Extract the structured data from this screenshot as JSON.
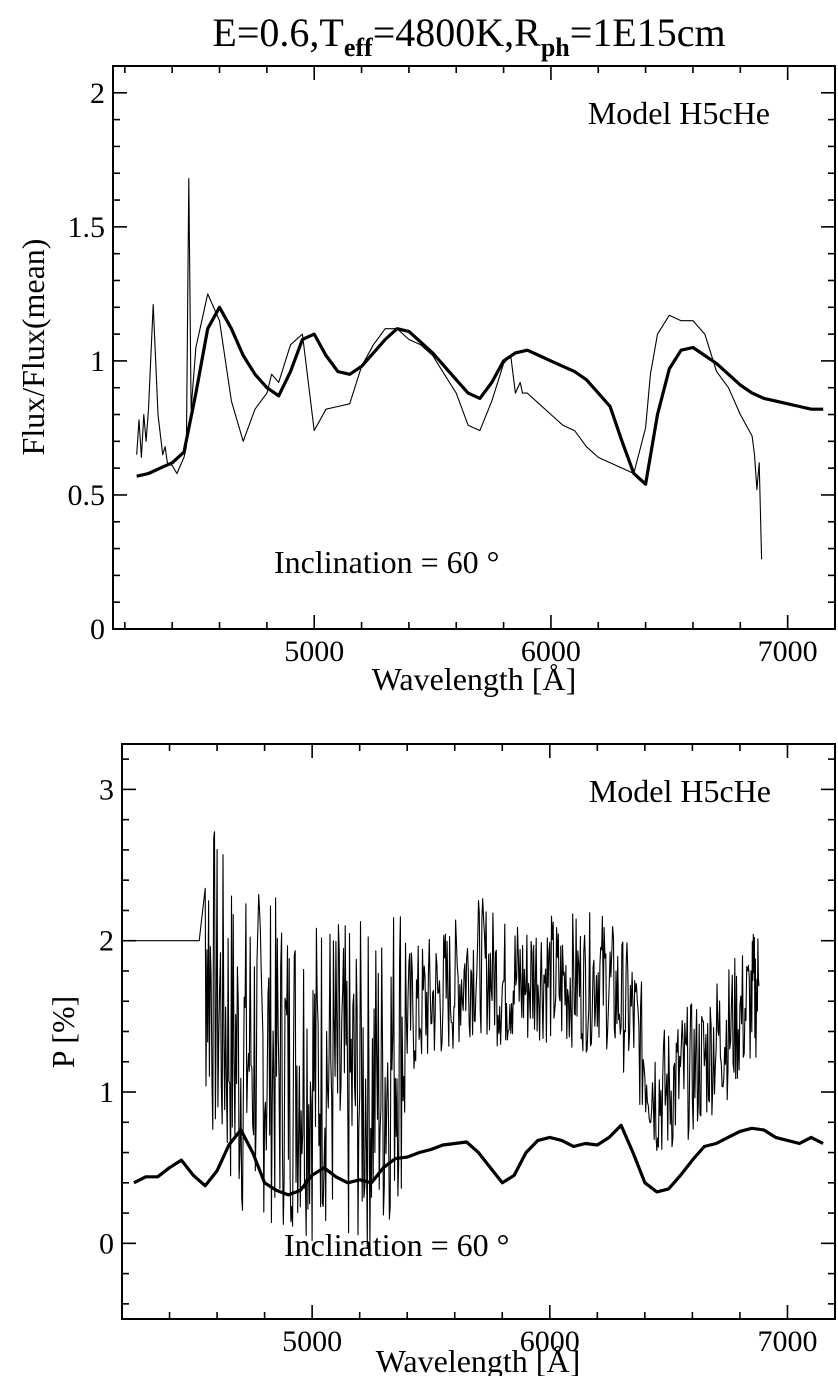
{
  "figure_title": "E=0.6,T_eff=4800K,R_ph=1E15cm",
  "title_parts": {
    "a": "E=0.6,T",
    "a_sub": "eff",
    "b": "=4800K,R",
    "b_sub": "ph",
    "c": "=1E15cm"
  },
  "chart_data": [
    {
      "type": "line",
      "title": "E=0.6,T_eff=4800K,R_ph=1E15cm",
      "annotation_top": "Model H5cHe",
      "annotation_bottom": "Inclination = 60 °",
      "xlabel": "Wavelength [Å]",
      "ylabel": "Flux/Flux(mean)",
      "xlim": [
        4150,
        7200
      ],
      "ylim": [
        0,
        2.1
      ],
      "xticks": [
        5000,
        6000,
        7000
      ],
      "xtick_labels": [
        "5000",
        "6000",
        "7000"
      ],
      "xminor": [
        4200,
        4400,
        4600,
        4800,
        5200,
        5400,
        5600,
        5800,
        6200,
        6400,
        6600,
        6800
      ],
      "yticks": [
        0,
        0.5,
        1,
        1.5,
        2
      ],
      "ytick_labels": [
        "0",
        "0.5",
        "1",
        "1.5",
        "2"
      ],
      "yminor": [
        0.1,
        0.2,
        0.3,
        0.4,
        0.6,
        0.7,
        0.8,
        0.9,
        1.1,
        1.2,
        1.3,
        1.4,
        1.6,
        1.7,
        1.8,
        1.9
      ],
      "grid": false,
      "series": [
        {
          "style": "thick",
          "x": [
            4250,
            4300,
            4350,
            4400,
            4450,
            4500,
            4550,
            4600,
            4650,
            4700,
            4750,
            4800,
            4850,
            4900,
            4950,
            5000,
            5050,
            5100,
            5150,
            5200,
            5250,
            5300,
            5350,
            5400,
            5450,
            5500,
            5550,
            5600,
            5650,
            5700,
            5750,
            5800,
            5850,
            5900,
            5950,
            6000,
            6050,
            6100,
            6150,
            6200,
            6250,
            6300,
            6350,
            6400,
            6450,
            6500,
            6550,
            6600,
            6650,
            6700,
            6750,
            6800,
            6850,
            6900,
            6950,
            7000,
            7050,
            7100,
            7150
          ],
          "y": [
            0.57,
            0.58,
            0.6,
            0.62,
            0.66,
            0.88,
            1.12,
            1.2,
            1.12,
            1.02,
            0.95,
            0.9,
            0.87,
            0.96,
            1.08,
            1.1,
            1.02,
            0.96,
            0.95,
            0.98,
            1.03,
            1.08,
            1.12,
            1.11,
            1.07,
            1.03,
            0.98,
            0.93,
            0.88,
            0.86,
            0.92,
            1.0,
            1.03,
            1.04,
            1.02,
            1.0,
            0.98,
            0.96,
            0.93,
            0.88,
            0.83,
            0.7,
            0.58,
            0.54,
            0.8,
            0.97,
            1.04,
            1.05,
            1.02,
            0.99,
            0.95,
            0.91,
            0.88,
            0.86,
            0.85,
            0.84,
            0.83,
            0.82,
            0.82
          ]
        },
        {
          "style": "thin",
          "x": [
            4250,
            4260,
            4270,
            4280,
            4290,
            4300,
            4320,
            4340,
            4360,
            4370,
            4380,
            4400,
            4420,
            4450,
            4460,
            4470,
            4480,
            4500,
            4550,
            4600,
            4650,
            4700,
            4750,
            4800,
            4820,
            4850,
            4900,
            4950,
            5000,
            5050,
            5100,
            5150,
            5200,
            5250,
            5300,
            5350,
            5400,
            5450,
            5500,
            5550,
            5600,
            5650,
            5700,
            5750,
            5800,
            5830,
            5850,
            5870,
            5880,
            5900,
            5950,
            6000,
            6050,
            6100,
            6150,
            6200,
            6250,
            6300,
            6350,
            6400,
            6420,
            6450,
            6500,
            6550,
            6600,
            6650,
            6700,
            6750,
            6800,
            6850,
            6860,
            6870,
            6880,
            6890
          ],
          "y": [
            0.65,
            0.78,
            0.64,
            0.8,
            0.7,
            0.82,
            1.21,
            0.8,
            0.65,
            0.68,
            0.62,
            0.61,
            0.58,
            0.64,
            0.68,
            1.68,
            0.82,
            1.05,
            1.25,
            1.15,
            0.85,
            0.7,
            0.82,
            0.88,
            0.95,
            0.92,
            1.06,
            1.1,
            0.74,
            0.82,
            0.83,
            0.84,
            0.98,
            1.06,
            1.12,
            1.12,
            1.08,
            1.06,
            1.02,
            0.95,
            0.88,
            0.76,
            0.74,
            0.85,
            0.99,
            1.02,
            0.88,
            0.92,
            0.88,
            0.88,
            0.84,
            0.8,
            0.76,
            0.74,
            0.68,
            0.64,
            0.62,
            0.6,
            0.58,
            0.75,
            0.95,
            1.1,
            1.17,
            1.15,
            1.15,
            1.1,
            0.96,
            0.9,
            0.8,
            0.72,
            0.65,
            0.52,
            0.62,
            0.26
          ]
        }
      ]
    },
    {
      "type": "line",
      "annotation_top": "Model H5cHe",
      "annotation_bottom": "Inclination = 60 °",
      "xlabel": "Wavelength [Å]",
      "ylabel": "P [%]",
      "xlim": [
        4200,
        7200
      ],
      "ylim": [
        -0.5,
        3.3
      ],
      "xticks": [
        5000,
        6000,
        7000
      ],
      "xtick_labels": [
        "5000",
        "6000",
        "7000"
      ],
      "xminor": [
        4400,
        4600,
        4800,
        5200,
        5400,
        5600,
        5800,
        6200,
        6400,
        6600,
        6800
      ],
      "yticks": [
        0,
        1,
        2,
        3
      ],
      "ytick_labels": [
        "0",
        "1",
        "2",
        "3"
      ],
      "yminor": [
        -0.4,
        -0.2,
        0.2,
        0.4,
        0.6,
        0.8,
        1.2,
        1.4,
        1.6,
        1.8,
        2.2,
        2.4,
        2.6,
        2.8,
        3.2
      ],
      "grid": false,
      "series": [
        {
          "style": "thick",
          "x": [
            4250,
            4300,
            4350,
            4400,
            4450,
            4500,
            4550,
            4600,
            4650,
            4700,
            4750,
            4800,
            4850,
            4900,
            4950,
            5000,
            5050,
            5100,
            5150,
            5200,
            5250,
            5300,
            5350,
            5400,
            5450,
            5500,
            5550,
            5600,
            5650,
            5700,
            5750,
            5800,
            5850,
            5900,
            5950,
            6000,
            6050,
            6100,
            6150,
            6200,
            6250,
            6300,
            6350,
            6400,
            6450,
            6500,
            6550,
            6600,
            6650,
            6700,
            6750,
            6800,
            6850,
            6900,
            6950,
            7000,
            7050,
            7100,
            7150
          ],
          "y": [
            0.4,
            0.44,
            0.44,
            0.5,
            0.55,
            0.45,
            0.38,
            0.48,
            0.65,
            0.75,
            0.6,
            0.4,
            0.35,
            0.32,
            0.35,
            0.45,
            0.5,
            0.44,
            0.4,
            0.42,
            0.4,
            0.5,
            0.56,
            0.57,
            0.6,
            0.62,
            0.65,
            0.66,
            0.67,
            0.6,
            0.5,
            0.4,
            0.45,
            0.6,
            0.68,
            0.7,
            0.68,
            0.64,
            0.66,
            0.65,
            0.7,
            0.78,
            0.6,
            0.4,
            0.34,
            0.36,
            0.45,
            0.55,
            0.64,
            0.66,
            0.7,
            0.74,
            0.76,
            0.75,
            0.7,
            0.68,
            0.66,
            0.7,
            0.66
          ]
        },
        {
          "style": "thin",
          "noisy": true,
          "x": [
            4250,
            4300,
            4350,
            4400,
            4450,
            4500,
            4550,
            4600,
            4650,
            4700,
            4750,
            4800,
            4850,
            4900,
            4950,
            5000,
            5050,
            5100,
            5150,
            5200,
            5250,
            5300,
            5350,
            5400,
            5450,
            5500,
            5550,
            5600,
            5650,
            5700,
            5750,
            5800,
            5850,
            5900,
            5950,
            6000,
            6050,
            6100,
            6150,
            6200,
            6250,
            6300,
            6350,
            6400,
            6450,
            6500,
            6550,
            6600,
            6650,
            6700,
            6750,
            6800,
            6850,
            6880
          ],
          "y": [
            2.0,
            2.0,
            2.0,
            2.0,
            2.0,
            2.0,
            2.0,
            1.6,
            1.4,
            1.2,
            1.3,
            1.25,
            1.2,
            1.15,
            1.2,
            1.1,
            1.2,
            1.1,
            1.0,
            1.05,
            1.0,
            1.1,
            1.3,
            1.5,
            1.55,
            1.6,
            1.65,
            1.7,
            1.8,
            1.85,
            1.8,
            1.7,
            1.75,
            1.7,
            1.8,
            1.75,
            1.7,
            1.75,
            1.7,
            1.8,
            1.7,
            1.6,
            1.5,
            1.2,
            1.0,
            1.0,
            1.1,
            1.15,
            1.2,
            1.35,
            1.4,
            1.5,
            1.6,
            1.7
          ]
        }
      ]
    }
  ]
}
